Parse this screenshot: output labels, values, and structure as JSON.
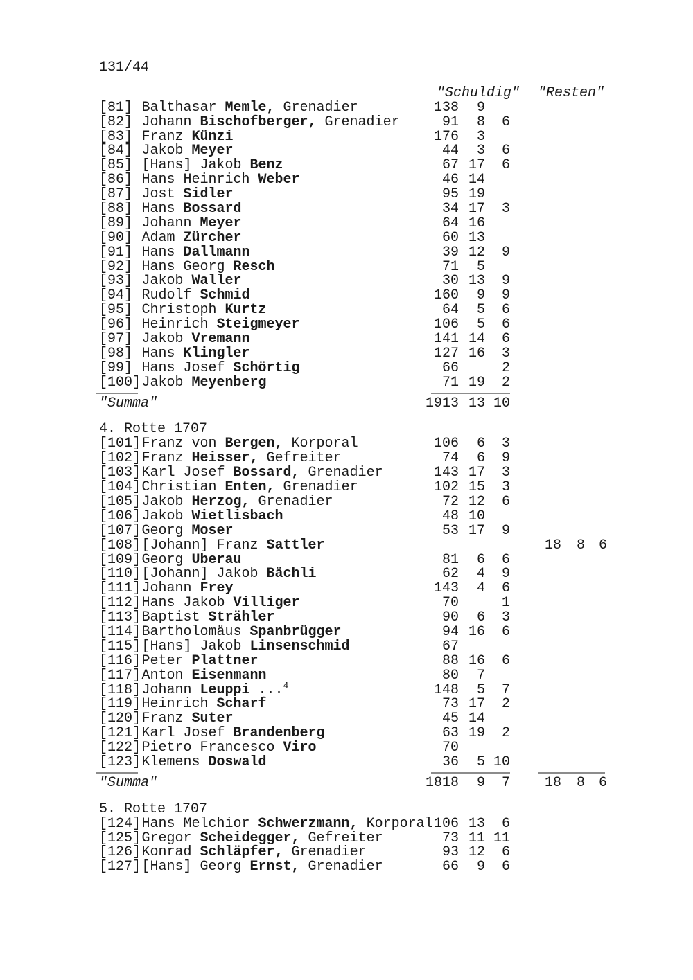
{
  "page": {
    "folio": "131/44"
  },
  "headers": {
    "schuldig": "\"Schuldig\"",
    "resten": "\"Resten\""
  },
  "summa_label": "\"Summa\"",
  "sections": [
    {
      "heading": "",
      "rows": [
        {
          "label": "[81]",
          "pre": "Balthasar ",
          "bold": "Memle,",
          "post": " Grenadier",
          "s": [
            "138",
            "9",
            ""
          ]
        },
        {
          "label": "[82]",
          "pre": "Johann ",
          "bold": "Bischofberger,",
          "post": " Grenadier",
          "s": [
            "91",
            "8",
            "6"
          ]
        },
        {
          "label": "[83]",
          "pre": "Franz ",
          "bold": "Künzi",
          "s": [
            "176",
            "3",
            ""
          ]
        },
        {
          "label": "[84]",
          "pre": "Jakob ",
          "bold": "Meyer",
          "s": [
            "44",
            "3",
            "6"
          ]
        },
        {
          "label": "[85]",
          "pre": "[Hans] Jakob ",
          "bold": "Benz",
          "s": [
            "67",
            "17",
            "6"
          ]
        },
        {
          "label": "[86]",
          "pre": "Hans Heinrich ",
          "bold": "Weber",
          "s": [
            "46",
            "14",
            ""
          ]
        },
        {
          "label": "[87]",
          "pre": "Jost ",
          "bold": "Sidler",
          "s": [
            "95",
            "19",
            ""
          ]
        },
        {
          "label": "[88]",
          "pre": "Hans ",
          "bold": "Bossard",
          "s": [
            "34",
            "17",
            "3"
          ]
        },
        {
          "label": "[89]",
          "pre": "Johann ",
          "bold": "Meyer",
          "s": [
            "64",
            "16",
            ""
          ]
        },
        {
          "label": "[90]",
          "pre": "Adam ",
          "bold": "Zürcher",
          "s": [
            "60",
            "13",
            ""
          ]
        },
        {
          "label": "[91]",
          "pre": "Hans ",
          "bold": "Dallmann",
          "s": [
            "39",
            "12",
            "9"
          ]
        },
        {
          "label": "[92]",
          "pre": "Hans Georg ",
          "bold": "Resch",
          "s": [
            "71",
            "5",
            ""
          ]
        },
        {
          "label": "[93]",
          "pre": "Jakob ",
          "bold": "Waller",
          "s": [
            "30",
            "13",
            "9"
          ]
        },
        {
          "label": "[94]",
          "pre": "Rudolf ",
          "bold": "Schmid",
          "s": [
            "160",
            "9",
            "9"
          ]
        },
        {
          "label": "[95]",
          "pre": "Christoph ",
          "bold": "Kurtz",
          "s": [
            "64",
            "5",
            "6"
          ]
        },
        {
          "label": "[96]",
          "pre": "Heinrich ",
          "bold": "Steigmeyer",
          "s": [
            "106",
            "5",
            "6"
          ]
        },
        {
          "label": "[97]",
          "pre": "Jakob ",
          "bold": "Vremann",
          "s": [
            "141",
            "14",
            "6"
          ]
        },
        {
          "label": "[98]",
          "pre": "Hans ",
          "bold": "Klingler",
          "s": [
            "127",
            "16",
            "3"
          ]
        },
        {
          "label": "[99]",
          "pre": "Hans Josef ",
          "bold": "Schörtig",
          "s": [
            "66",
            "",
            "2"
          ]
        },
        {
          "label": "[100]",
          "pre": "Jakob ",
          "bold": "Meyenberg",
          "s": [
            "71",
            "19",
            "2"
          ]
        }
      ],
      "rules": [
        "label",
        "schuldig"
      ],
      "summa": {
        "s": [
          "1913",
          "13",
          "10"
        ],
        "r": [
          "",
          "",
          ""
        ]
      }
    },
    {
      "heading": "4. Rotte 1707",
      "rows": [
        {
          "label": "[101]",
          "pre": "Franz von ",
          "bold": "Bergen,",
          "post": " Korporal",
          "s": [
            "106",
            "6",
            "3"
          ]
        },
        {
          "label": "[102]",
          "pre": "Franz ",
          "bold": "Heisser,",
          "post": " Gefreiter",
          "s": [
            "74",
            "6",
            "9"
          ]
        },
        {
          "label": "[103]",
          "pre": "Karl Josef ",
          "bold": "Bossard,",
          "post": " Grenadier",
          "s": [
            "143",
            "17",
            "3"
          ]
        },
        {
          "label": "[104]",
          "pre": "Christian ",
          "bold": "Enten,",
          "post": " Grenadier",
          "s": [
            "102",
            "15",
            "3"
          ]
        },
        {
          "label": "[105]",
          "pre": "Jakob ",
          "bold": "Herzog,",
          "post": " Grenadier",
          "s": [
            "72",
            "12",
            "6"
          ]
        },
        {
          "label": "[106]",
          "pre": "Jakob ",
          "bold": "Wietlisbach",
          "s": [
            "48",
            "10",
            ""
          ]
        },
        {
          "label": "[107]",
          "pre": "Georg ",
          "bold": "Moser",
          "s": [
            "53",
            "17",
            "9"
          ]
        },
        {
          "label": "[108]",
          "pre": "[Johann] Franz ",
          "bold": "Sattler",
          "s": [
            "",
            "",
            ""
          ],
          "r": [
            "18",
            "8",
            "6"
          ]
        },
        {
          "label": "[109]",
          "pre": "Georg ",
          "bold": "Uberau",
          "s": [
            "81",
            "6",
            "6"
          ]
        },
        {
          "label": "[110]",
          "pre": "[Johann] Jakob ",
          "bold": "Bächli",
          "s": [
            "62",
            "4",
            "9"
          ]
        },
        {
          "label": "[111]",
          "pre": "Johann ",
          "bold": "Frey",
          "s": [
            "143",
            "4",
            "6"
          ]
        },
        {
          "label": "[112]",
          "pre": "Hans Jakob ",
          "bold": "Villiger",
          "s": [
            "70",
            "",
            "1"
          ]
        },
        {
          "label": "[113]",
          "pre": "Baptist ",
          "bold": "Strähler",
          "s": [
            "90",
            "6",
            "3"
          ]
        },
        {
          "label": "[114]",
          "pre": "Bartholomäus ",
          "bold": "Spanbrügger",
          "s": [
            "94",
            "16",
            "6"
          ]
        },
        {
          "label": "[115]",
          "pre": "[Hans] Jakob ",
          "bold": "Linsenschmid",
          "s": [
            "67",
            "",
            ""
          ]
        },
        {
          "label": "[116]",
          "pre": "Peter ",
          "bold": "Plattner",
          "s": [
            "88",
            "16",
            "6"
          ]
        },
        {
          "label": "[117]",
          "pre": "Anton ",
          "bold": "Eisenmann",
          "s": [
            "80",
            "7",
            ""
          ]
        },
        {
          "label": "[118]",
          "pre": "Johann ",
          "bold": "Leuppi",
          "post": " ...",
          "sup": "4",
          "s": [
            "148",
            "5",
            "7"
          ]
        },
        {
          "label": "[119]",
          "pre": "Heinrich ",
          "bold": "Scharf",
          "s": [
            "73",
            "17",
            "2"
          ]
        },
        {
          "label": "[120]",
          "pre": "Franz ",
          "bold": "Suter",
          "s": [
            "45",
            "14",
            ""
          ]
        },
        {
          "label": "[121]",
          "pre": "Karl Josef ",
          "bold": "Brandenberg",
          "s": [
            "63",
            "19",
            "2"
          ]
        },
        {
          "label": "[122]",
          "pre": "Pietro Francesco ",
          "bold": "Viro",
          "s": [
            "70",
            "",
            ""
          ]
        },
        {
          "label": "[123]",
          "pre": "Klemens ",
          "bold": "Doswald",
          "s": [
            "36",
            "5",
            "10"
          ]
        }
      ],
      "rules": [
        "label",
        "schuldig",
        "resten"
      ],
      "summa": {
        "s": [
          "1818",
          "9",
          "7"
        ],
        "r": [
          "18",
          "8",
          "6"
        ]
      }
    },
    {
      "heading": "5. Rotte 1707",
      "rows": [
        {
          "label": "[124]",
          "pre": "Hans Melchior ",
          "bold": "Schwerzmann,",
          "post": " Korporal",
          "s": [
            "106",
            "13",
            "6"
          ]
        },
        {
          "label": "[125]",
          "pre": "Gregor ",
          "bold": "Scheidegger,",
          "post": " Gefreiter",
          "s": [
            "73",
            "11",
            "11"
          ]
        },
        {
          "label": "[126]",
          "pre": "Konrad ",
          "bold": "Schläpfer,",
          "post": " Grenadier",
          "s": [
            "93",
            "12",
            "6"
          ]
        },
        {
          "label": "[127]",
          "pre": "[Hans] Georg ",
          "bold": "Ernst,",
          "post": " Grenadier",
          "s": [
            "66",
            "9",
            "6"
          ]
        }
      ],
      "rules": [],
      "summa": null
    }
  ]
}
